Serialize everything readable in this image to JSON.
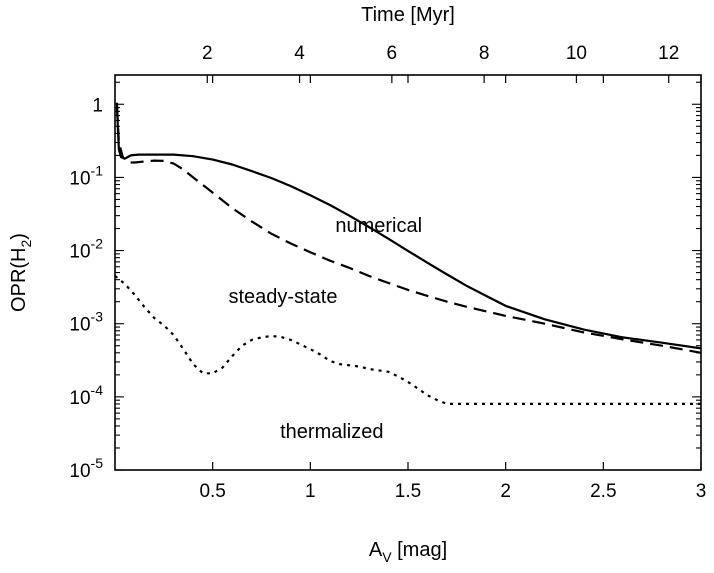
{
  "chart_data": {
    "type": "line",
    "title": "",
    "xlabel": "A",
    "xlabel_sub": "V",
    "xlabel_unit": " [mag]",
    "ylabel": "OPR(H",
    "ylabel_sub": "2",
    "ylabel_end": ")",
    "x2label": "Time [Myr]",
    "xlim": [
      0,
      3
    ],
    "ylim_log10": [
      -5,
      0.4
    ],
    "y_scale": "log",
    "x_ticks": [
      0.5,
      1,
      1.5,
      2,
      2.5,
      3
    ],
    "x_tick_labels": [
      "0.5",
      "1",
      "1.5",
      "2",
      "2.5",
      "3"
    ],
    "x2lim": [
      0,
      12.7
    ],
    "x2_ticks": [
      2,
      4,
      6,
      8,
      10,
      12
    ],
    "x2_tick_labels": [
      "2",
      "4",
      "6",
      "8",
      "10",
      "12"
    ],
    "y_ticks": [
      {
        "exp": 0,
        "mant": "1",
        "sup": ""
      },
      {
        "exp": -1,
        "mant": "10",
        "sup": "-1"
      },
      {
        "exp": -2,
        "mant": "10",
        "sup": "-2"
      },
      {
        "exp": -3,
        "mant": "10",
        "sup": "-3"
      },
      {
        "exp": -4,
        "mant": "10",
        "sup": "-4"
      },
      {
        "exp": -5,
        "mant": "10",
        "sup": "-5"
      }
    ],
    "grid": false,
    "series": [
      {
        "name": "numerical",
        "style": "solid",
        "x": [
          0.01,
          0.015,
          0.02,
          0.03,
          0.05,
          0.08,
          0.12,
          0.2,
          0.3,
          0.4,
          0.5,
          0.6,
          0.7,
          0.8,
          0.9,
          1.0,
          1.1,
          1.2,
          1.3,
          1.4,
          1.5,
          1.6,
          1.7,
          1.8,
          1.9,
          2.0,
          2.2,
          2.4,
          2.6,
          2.8,
          3.0
        ],
        "y": [
          1.05,
          0.45,
          0.24,
          0.19,
          0.18,
          0.2,
          0.205,
          0.205,
          0.205,
          0.195,
          0.175,
          0.15,
          0.122,
          0.098,
          0.076,
          0.057,
          0.042,
          0.03,
          0.021,
          0.0145,
          0.0099,
          0.0068,
          0.0047,
          0.0033,
          0.0024,
          0.00175,
          0.00115,
          0.00083,
          0.00065,
          0.00055,
          0.00046
        ]
      },
      {
        "name": "steady-state",
        "style": "dashed",
        "x": [
          0.01,
          0.02,
          0.04,
          0.07,
          0.1,
          0.15,
          0.2,
          0.25,
          0.3,
          0.35,
          0.4,
          0.5,
          0.6,
          0.7,
          0.8,
          0.9,
          1.0,
          1.1,
          1.2,
          1.3,
          1.4,
          1.5,
          1.6,
          1.7,
          1.8,
          2.0,
          2.2,
          2.4,
          2.6,
          2.8,
          3.0
        ],
        "y": [
          0.9,
          0.3,
          0.19,
          0.16,
          0.16,
          0.165,
          0.17,
          0.168,
          0.155,
          0.128,
          0.1,
          0.062,
          0.038,
          0.025,
          0.017,
          0.0125,
          0.0095,
          0.0073,
          0.0058,
          0.0045,
          0.0036,
          0.0029,
          0.0024,
          0.002,
          0.0017,
          0.00128,
          0.001,
          0.00076,
          0.00061,
          0.0005,
          0.0004
        ]
      },
      {
        "name": "thermalized",
        "style": "dotted",
        "x": [
          0.0,
          0.05,
          0.1,
          0.15,
          0.2,
          0.25,
          0.3,
          0.35,
          0.4,
          0.45,
          0.5,
          0.55,
          0.6,
          0.65,
          0.7,
          0.75,
          0.8,
          0.85,
          0.9,
          0.95,
          1.0,
          1.05,
          1.1,
          1.15,
          1.2,
          1.25,
          1.3,
          1.35,
          1.4,
          1.45,
          1.5,
          1.55,
          1.6,
          1.65,
          1.7,
          1.75,
          2.0,
          2.5,
          3.0
        ],
        "y": [
          0.0045,
          0.0035,
          0.0025,
          0.0017,
          0.0012,
          0.00095,
          0.0007,
          0.00045,
          0.00028,
          0.00021,
          0.00021,
          0.00025,
          0.00036,
          0.0005,
          0.0006,
          0.00065,
          0.00068,
          0.00066,
          0.0006,
          0.00052,
          0.00045,
          0.00038,
          0.00031,
          0.00028,
          0.00027,
          0.00026,
          0.00024,
          0.00023,
          0.00022,
          0.00019,
          0.00016,
          0.00013,
          0.000105,
          9e-05,
          8e-05,
          8e-05,
          8e-05,
          8e-05,
          8e-05
        ]
      }
    ],
    "annotations": [
      {
        "text": "numerical",
        "x": 1.35,
        "y_log10": -1.65
      },
      {
        "text": "steady-state",
        "x": 0.86,
        "y_log10": -2.62
      },
      {
        "text": "thermalized",
        "x": 1.11,
        "y_log10": -4.47
      }
    ]
  }
}
